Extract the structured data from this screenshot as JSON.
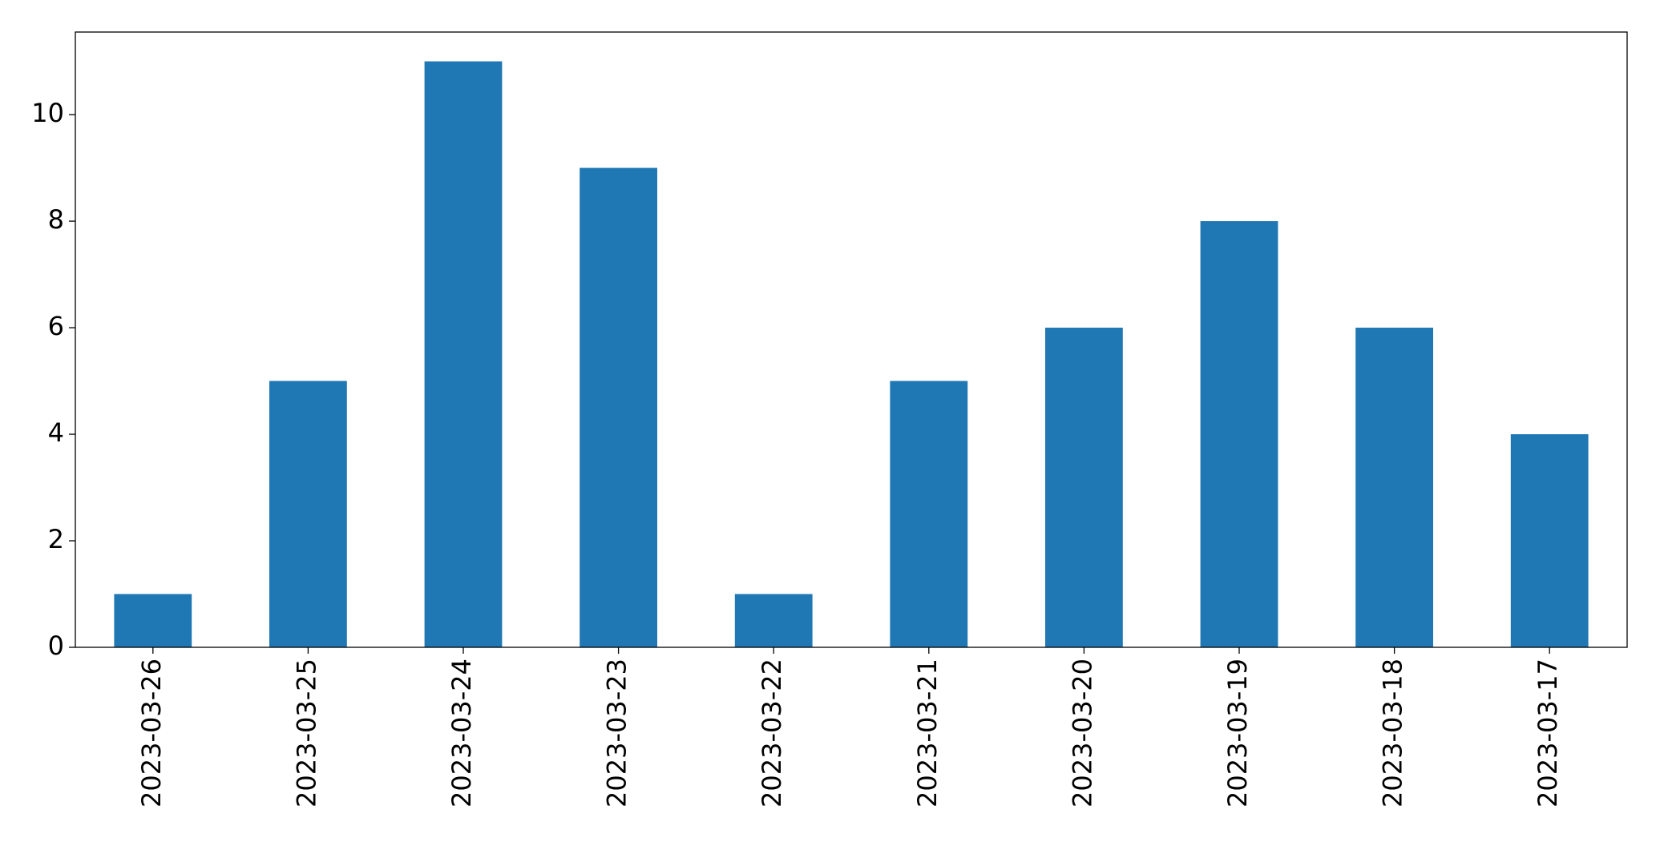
{
  "chart_data": {
    "type": "bar",
    "categories": [
      "2023-03-26",
      "2023-03-25",
      "2023-03-24",
      "2023-03-23",
      "2023-03-22",
      "2023-03-21",
      "2023-03-20",
      "2023-03-19",
      "2023-03-18",
      "2023-03-17"
    ],
    "values": [
      1,
      5,
      11,
      9,
      1,
      5,
      6,
      8,
      6,
      4
    ],
    "color": "#1f77b4",
    "ylim": [
      0,
      11.55
    ],
    "yticks": [
      0,
      2,
      4,
      6,
      8,
      10
    ],
    "grid": false
  }
}
